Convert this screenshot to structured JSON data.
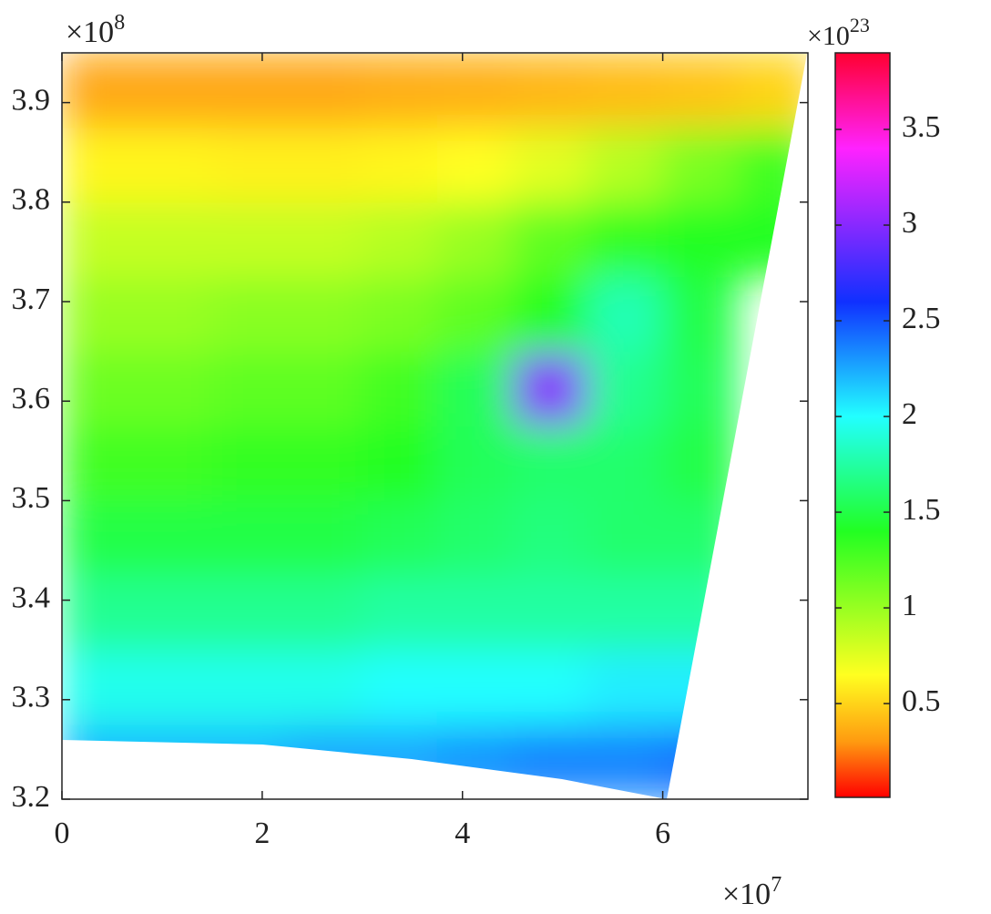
{
  "chart_data": {
    "type": "heatmap",
    "x": [
      0.375,
      1.125,
      1.875,
      2.625,
      3.375,
      4.125,
      4.875,
      5.625,
      6.375,
      7.125
    ],
    "y": [
      3.2375,
      3.3125,
      3.3875,
      3.4625,
      3.5375,
      3.6125,
      3.6875,
      3.7625,
      3.8375,
      3.9125
    ],
    "values": [
      [
        2.2,
        2.2,
        2.2,
        2.25,
        2.25,
        2.3,
        2.35,
        2.35,
        2.4,
        null
      ],
      [
        1.95,
        1.95,
        1.95,
        1.95,
        2.0,
        2.0,
        2.0,
        2.05,
        2.05,
        null
      ],
      [
        1.7,
        1.7,
        1.7,
        1.7,
        1.75,
        1.75,
        1.75,
        1.75,
        1.75,
        null
      ],
      [
        1.5,
        1.5,
        1.5,
        1.5,
        1.55,
        1.6,
        1.65,
        1.6,
        1.6,
        null
      ],
      [
        1.3,
        1.3,
        1.35,
        1.35,
        1.4,
        1.55,
        1.6,
        1.6,
        1.5,
        null
      ],
      [
        1.15,
        1.15,
        1.2,
        1.2,
        1.3,
        1.55,
        3.0,
        1.7,
        1.55,
        null
      ],
      [
        1.0,
        1.0,
        1.05,
        1.05,
        1.1,
        1.2,
        1.4,
        1.8,
        1.5,
        null
      ],
      [
        0.85,
        0.85,
        0.85,
        0.85,
        0.9,
        1.0,
        1.2,
        1.35,
        1.4,
        1.4
      ],
      [
        0.62,
        0.62,
        0.6,
        0.6,
        0.62,
        0.65,
        0.75,
        0.9,
        1.1,
        1.3
      ],
      [
        0.35,
        0.35,
        0.35,
        0.35,
        0.37,
        0.38,
        0.4,
        0.42,
        0.45,
        0.5
      ]
    ],
    "xlim": [
      0,
      7.45
    ],
    "ylim": [
      3.2,
      3.95
    ],
    "xticks": [
      0,
      2,
      4,
      6
    ],
    "yticks": [
      3.2,
      3.3,
      3.4,
      3.5,
      3.6,
      3.7,
      3.8,
      3.9
    ],
    "x_multiplier": "×10",
    "x_exponent": "7",
    "y_multiplier": "×10",
    "y_exponent": "8",
    "colormap": [
      [
        0,
        "#ff0000"
      ],
      [
        0.3,
        "#ff9a10"
      ],
      [
        0.65,
        "#ffff20"
      ],
      [
        1.4,
        "#22ff22"
      ],
      [
        2.0,
        "#22ffff"
      ],
      [
        2.6,
        "#1030ff"
      ],
      [
        3.4,
        "#ff22ff"
      ],
      [
        3.9,
        "#ff0030"
      ]
    ],
    "colorbar": {
      "clim": [
        0.01,
        3.9
      ],
      "ticks": [
        0.5,
        1,
        1.5,
        2,
        2.5,
        3,
        3.5
      ],
      "multiplier": "×10",
      "exponent": "23"
    }
  }
}
